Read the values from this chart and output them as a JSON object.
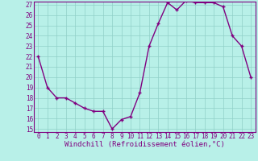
{
  "hours": [
    0,
    1,
    2,
    3,
    4,
    5,
    6,
    7,
    8,
    9,
    10,
    11,
    12,
    13,
    14,
    15,
    16,
    17,
    18,
    19,
    20,
    21,
    22,
    23
  ],
  "values": [
    22,
    19,
    18,
    18,
    17.5,
    17,
    16.7,
    16.7,
    15,
    15.9,
    16.2,
    18.5,
    23,
    25.2,
    27.2,
    26.5,
    27.4,
    27.2,
    27.2,
    27.2,
    26.8,
    24,
    23,
    20
  ],
  "line_color": "#800080",
  "marker": "+",
  "bg_color": "#b8f0e8",
  "grid_color": "#90d0c8",
  "xlabel": "Windchill (Refroidissement éolien,°C)",
  "xlabel_color": "#800080",
  "ylim_min": 15,
  "ylim_max": 27,
  "yticks": [
    15,
    16,
    17,
    18,
    19,
    20,
    21,
    22,
    23,
    24,
    25,
    26,
    27
  ],
  "xticks": [
    0,
    1,
    2,
    3,
    4,
    5,
    6,
    7,
    8,
    9,
    10,
    11,
    12,
    13,
    14,
    15,
    16,
    17,
    18,
    19,
    20,
    21,
    22,
    23
  ],
  "tick_color": "#800080",
  "spine_color": "#800080",
  "tick_fontsize": 5.5,
  "xlabel_fontsize": 6.5,
  "linewidth": 1.0,
  "markersize": 3.5
}
